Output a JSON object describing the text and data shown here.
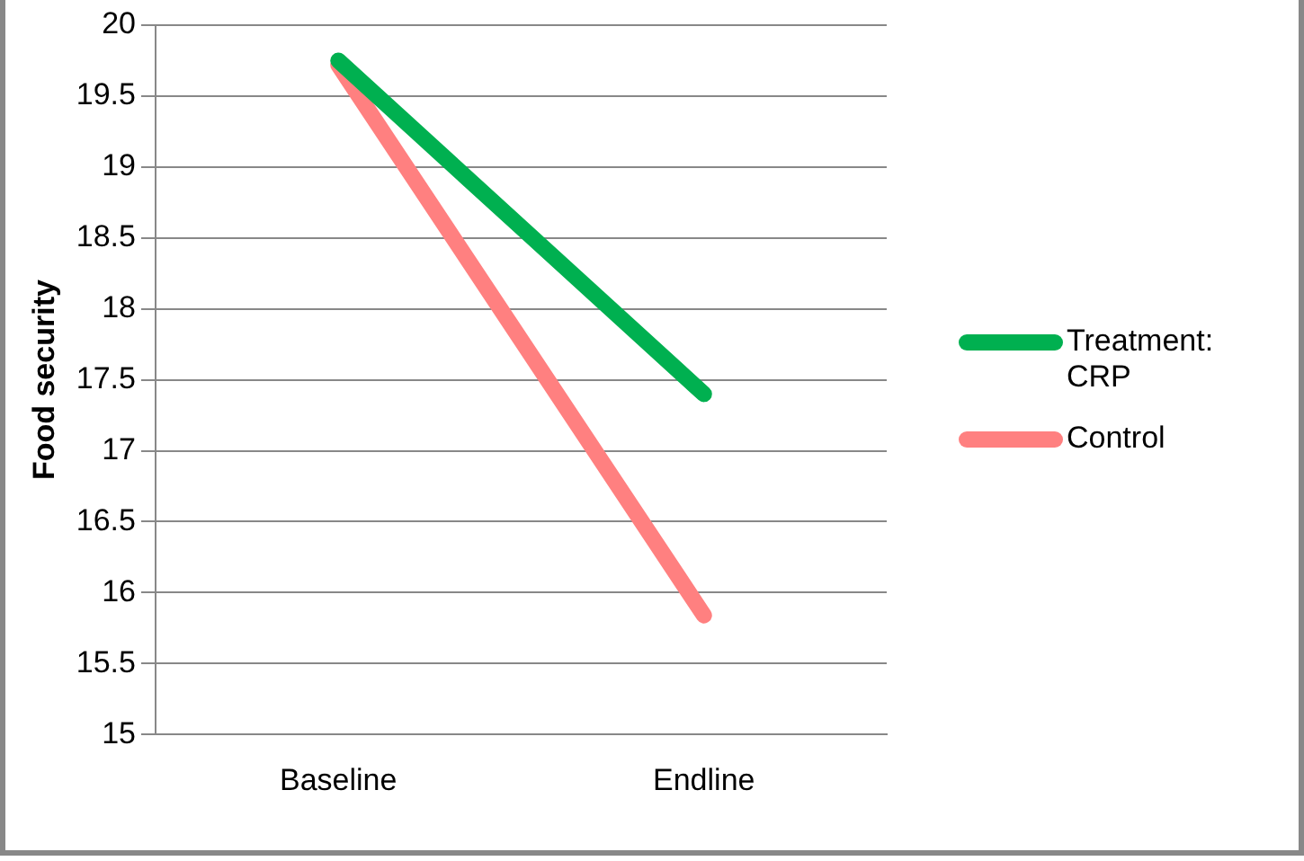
{
  "chart_data": {
    "type": "line",
    "ylabel": "Food security",
    "categories": [
      "Baseline",
      "Endline"
    ],
    "series": [
      {
        "name": "Treatment: CRP",
        "color": "#00b050",
        "values": [
          19.75,
          17.4
        ]
      },
      {
        "name": "Control",
        "color": "#ff8080",
        "values": [
          19.72,
          15.84
        ]
      }
    ],
    "ylim": [
      15,
      20
    ],
    "yticks": [
      15,
      15.5,
      16,
      16.5,
      17,
      17.5,
      18,
      18.5,
      19,
      19.5,
      20
    ],
    "grid": "y",
    "legend": "right",
    "marker": "none",
    "line_style": "solid"
  }
}
